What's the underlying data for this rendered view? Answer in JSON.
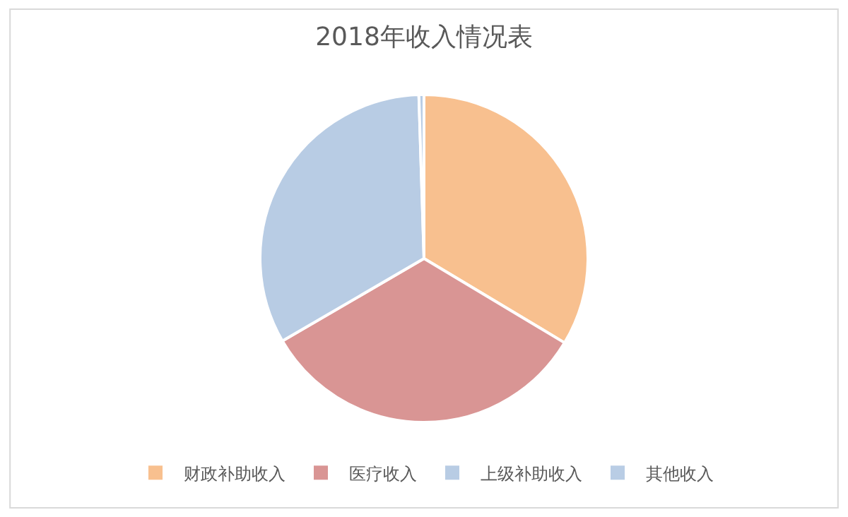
{
  "chart_data": {
    "type": "pie",
    "title": "2018年收入情况表",
    "categories": [
      "财政补助收入",
      "医疗收入",
      "上级补助收入",
      "其他收入"
    ],
    "values": [
      33.6,
      33.0,
      32.9,
      0.5
    ],
    "colors": [
      "#f8c08f",
      "#d99594",
      "#b8cce4",
      "#b9cde5"
    ],
    "legend": "bottom"
  }
}
